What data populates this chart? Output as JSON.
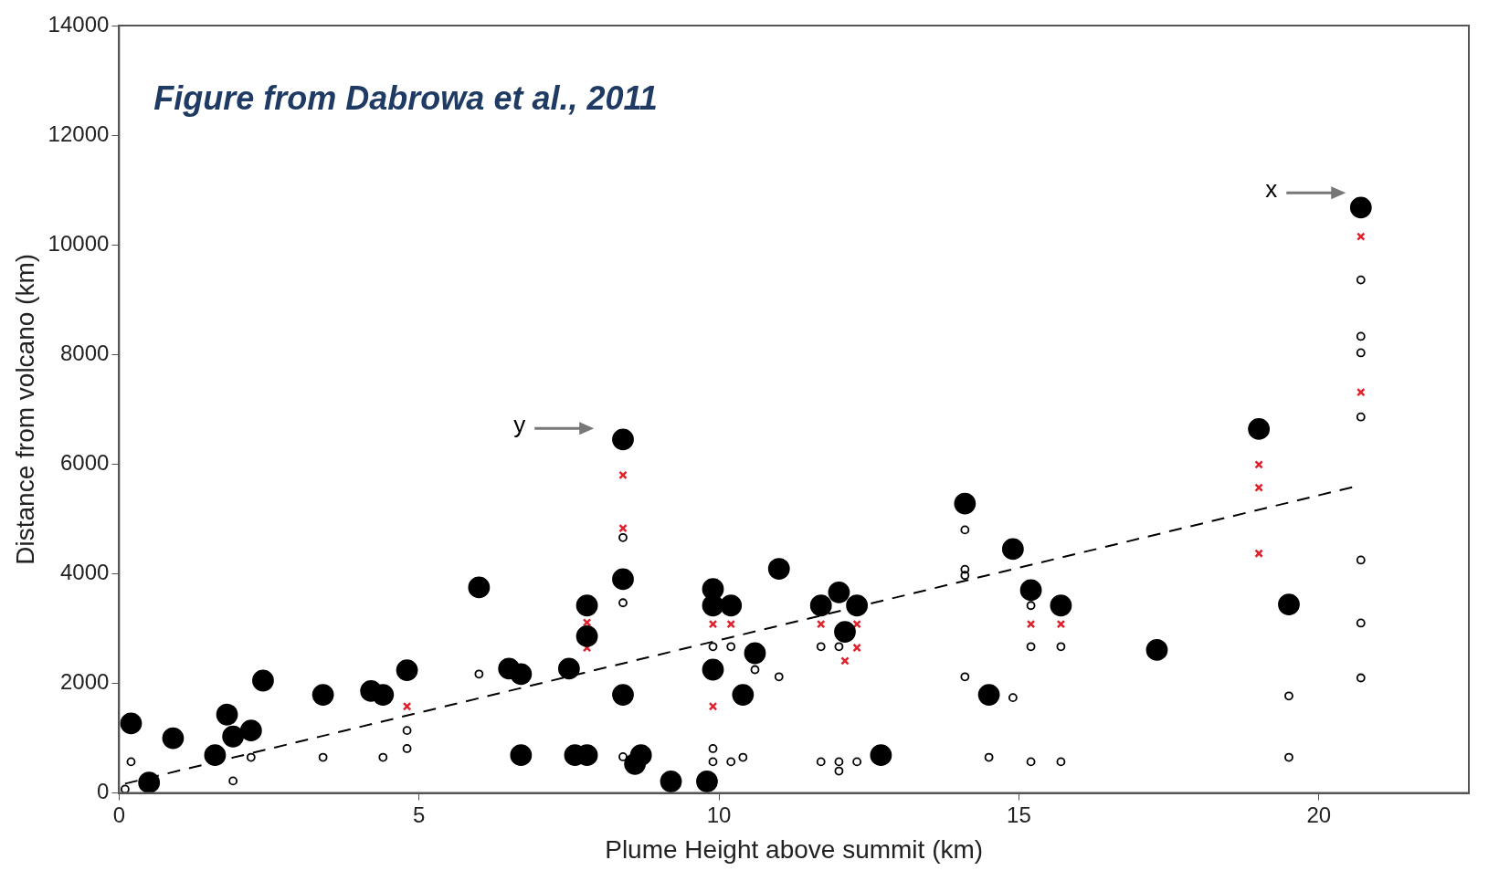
{
  "chart_data": {
    "type": "scatter",
    "xlabel": "Plume Height above summit (km)",
    "ylabel": "Distance from volcano (km)",
    "xlim": [
      0,
      22.5
    ],
    "xticks": [
      0,
      5,
      10,
      15,
      20
    ],
    "ylim": [
      0,
      14000
    ],
    "yticks": [
      0,
      2000,
      4000,
      6000,
      8000,
      10000,
      12000,
      14000
    ],
    "grid": false,
    "legend": false,
    "annotations": [
      "Figure from Dabrowa et al., 2011",
      "x",
      "y"
    ],
    "series": [
      {
        "type": "scatter",
        "marker": "circle",
        "color": "#000000",
        "x": [
          0.2,
          0.5,
          0.9,
          1.6,
          1.8,
          1.9,
          2.2,
          2.4,
          3.4,
          4.2,
          4.4,
          4.8,
          6.0,
          6.5,
          6.7,
          6.7,
          7.5,
          7.6,
          7.8,
          7.8,
          7.8,
          8.4,
          8.4,
          8.4,
          8.6,
          8.7,
          9.2,
          9.8,
          9.9,
          9.9,
          9.9,
          10.2,
          10.4,
          10.6,
          11.0,
          11.7,
          12.0,
          12.1,
          12.3,
          12.7,
          14.1,
          14.5,
          14.9,
          15.2,
          15.7,
          17.3,
          19.0,
          19.5,
          20.7
        ],
        "values": [
          1270,
          190,
          1000,
          690,
          1430,
          1030,
          1140,
          2050,
          1790,
          1860,
          1790,
          2240,
          3750,
          2270,
          2170,
          690,
          2270,
          690,
          690,
          3420,
          2860,
          6450,
          3900,
          1790,
          530,
          690,
          210,
          210,
          3720,
          3420,
          2250,
          3420,
          1790,
          2550,
          4090,
          3420,
          3660,
          2940,
          3420,
          690,
          5280,
          1790,
          4450,
          3700,
          3420,
          2610,
          6640,
          3440,
          10680
        ]
      },
      {
        "type": "scatter",
        "marker": "circle",
        "color": "#000000",
        "x": [
          0.2,
          0.1,
          1.9,
          2.2,
          3.4,
          4.4,
          4.8,
          4.8,
          6.0,
          8.4,
          8.4,
          8.4,
          9.9,
          9.9,
          9.9,
          10.2,
          10.2,
          10.4,
          10.6,
          11.0,
          11.7,
          11.7,
          12.0,
          12.0,
          12.0,
          12.3,
          14.1,
          14.1,
          14.1,
          14.1,
          14.5,
          14.9,
          15.2,
          15.2,
          15.2,
          15.7,
          15.7,
          19.5,
          19.5,
          20.7,
          20.7,
          20.7,
          20.7,
          20.7,
          20.7,
          20.7
        ],
        "values": [
          570,
          70,
          220,
          650,
          650,
          650,
          1140,
          810,
          2170,
          4660,
          3470,
          660,
          2670,
          810,
          570,
          2670,
          570,
          650,
          2250,
          2120,
          2670,
          570,
          2670,
          570,
          400,
          570,
          4800,
          4080,
          3970,
          2120,
          650,
          1740,
          3420,
          2670,
          570,
          2670,
          570,
          1770,
          650,
          9360,
          8330,
          8030,
          6860,
          4250,
          3100,
          2100
        ]
      },
      {
        "type": "scatter",
        "marker": "cross",
        "color": "#e0202a",
        "x": [
          4.8,
          8.4,
          8.4,
          7.8,
          7.8,
          9.9,
          9.9,
          10.2,
          11.7,
          12.3,
          12.3,
          12.1,
          15.2,
          15.7,
          19.0,
          19.0,
          19.0,
          20.7,
          20.7
        ],
        "values": [
          1580,
          5800,
          4830,
          3110,
          2650,
          3080,
          1580,
          3080,
          3080,
          3080,
          2650,
          2410,
          3080,
          3080,
          5990,
          5570,
          4370,
          10150,
          7310
        ]
      },
      {
        "type": "line",
        "marker": "none",
        "line_style": "dashed",
        "color": "#000000",
        "x": [
          0.1,
          20.6
        ],
        "values": [
          170,
          5590
        ]
      }
    ]
  }
}
